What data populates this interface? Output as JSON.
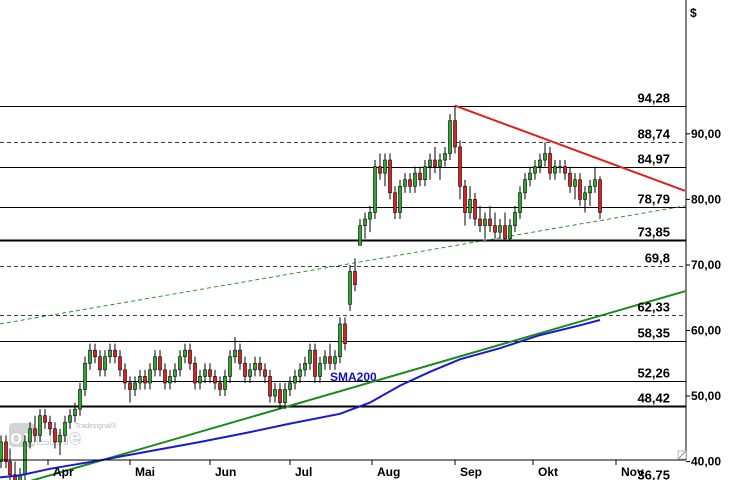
{
  "chart_data": {
    "type": "candlestick",
    "currency_symbol": "$",
    "y_range": [
      35,
      100
    ],
    "y_ticks": [
      {
        "value": 40,
        "label": "40,00"
      },
      {
        "value": 50,
        "label": "50,00"
      },
      {
        "value": 60,
        "label": "60,00"
      },
      {
        "value": 70,
        "label": "70,00"
      },
      {
        "value": 80,
        "label": "80,00"
      },
      {
        "value": 90,
        "label": "90,00"
      }
    ],
    "x_months": [
      "Apr",
      "Mai",
      "Jun",
      "Jul",
      "Aug",
      "Sep",
      "Okt",
      "Nov"
    ],
    "levels": [
      {
        "value": 94.28,
        "label": "94,28",
        "style": "solid"
      },
      {
        "value": 88.74,
        "label": "88,74",
        "style": "dashed"
      },
      {
        "value": 84.97,
        "label": "84,97",
        "style": "solid"
      },
      {
        "value": 78.79,
        "label": "78,79",
        "style": "solid"
      },
      {
        "value": 73.85,
        "label": "73,85",
        "style": "thick"
      },
      {
        "value": 69.8,
        "label": "69,8",
        "style": "dashed"
      },
      {
        "value": 62.33,
        "label": "62,33",
        "style": "dashed"
      },
      {
        "value": 58.35,
        "label": "58,35",
        "style": "solid"
      },
      {
        "value": 52.26,
        "label": "52,26",
        "style": "solid"
      },
      {
        "value": 48.42,
        "label": "48,42",
        "style": "thick"
      },
      {
        "value": 36.75,
        "label": "36,75",
        "style": "thick"
      }
    ],
    "sma_label": "SMA200",
    "sma200": [
      [
        0,
        37.6
      ],
      [
        20,
        37.9
      ],
      [
        50,
        38.9
      ],
      [
        100,
        40.2
      ],
      [
        150,
        41.6
      ],
      [
        200,
        43.0
      ],
      [
        250,
        44.5
      ],
      [
        290,
        45.8
      ],
      [
        340,
        47.3
      ],
      [
        370,
        49.0
      ],
      [
        400,
        51.6
      ],
      [
        430,
        53.7
      ],
      [
        460,
        55.6
      ],
      [
        500,
        57.3
      ],
      [
        540,
        59.3
      ],
      [
        580,
        60.8
      ],
      [
        600,
        61.6
      ]
    ],
    "trendlines": [
      {
        "name": "uptrend",
        "color": "#1a8a1a",
        "style": "solid",
        "points": [
          [
            0,
            35.7
          ],
          [
            685,
            66.0
          ]
        ]
      },
      {
        "name": "channel",
        "color": "#1a8a1a",
        "style": "dashed",
        "points": [
          [
            0,
            61.0
          ],
          [
            685,
            79.0
          ]
        ]
      },
      {
        "name": "downtrend",
        "color": "#e02020",
        "style": "solid",
        "points": [
          [
            455,
            94.3
          ],
          [
            685,
            81.3
          ]
        ]
      }
    ],
    "candles": [
      [
        1,
        40,
        44,
        39,
        43
      ],
      [
        6,
        43,
        44,
        39,
        40
      ],
      [
        10,
        40,
        42,
        37,
        38
      ],
      [
        15,
        38,
        40,
        36,
        37
      ],
      [
        20,
        37,
        39,
        36,
        38
      ],
      [
        25,
        38,
        44,
        37,
        43
      ],
      [
        30,
        43,
        46,
        42,
        45
      ],
      [
        35,
        45,
        47,
        43,
        44
      ],
      [
        40,
        44,
        48,
        43,
        47
      ],
      [
        45,
        47,
        48,
        45,
        46
      ],
      [
        50,
        46,
        47,
        44,
        45
      ],
      [
        55,
        45,
        46,
        42,
        43
      ],
      [
        60,
        43,
        45,
        41,
        44
      ],
      [
        65,
        44,
        47,
        43,
        46
      ],
      [
        70,
        46,
        48,
        45,
        47
      ],
      [
        75,
        47,
        49,
        46,
        48
      ],
      [
        80,
        48,
        52,
        47,
        51
      ],
      [
        85,
        51,
        56,
        50,
        55
      ],
      [
        90,
        55,
        58,
        54,
        57
      ],
      [
        95,
        57,
        58,
        55,
        56
      ],
      [
        100,
        56,
        57,
        53,
        54
      ],
      [
        105,
        54,
        57,
        53,
        56
      ],
      [
        110,
        56,
        58,
        55,
        57
      ],
      [
        115,
        57,
        58,
        55,
        56
      ],
      [
        120,
        56,
        57,
        53,
        54
      ],
      [
        125,
        54,
        55,
        51,
        52
      ],
      [
        130,
        52,
        53,
        49,
        51
      ],
      [
        135,
        51,
        53,
        50,
        52
      ],
      [
        140,
        52,
        54,
        51,
        53
      ],
      [
        145,
        53,
        54,
        51,
        52
      ],
      [
        150,
        52,
        55,
        51,
        54
      ],
      [
        155,
        54,
        57,
        53,
        56
      ],
      [
        160,
        56,
        57,
        53,
        54
      ],
      [
        165,
        54,
        55,
        51,
        52
      ],
      [
        170,
        52,
        54,
        51,
        53
      ],
      [
        175,
        53,
        55,
        52,
        54
      ],
      [
        180,
        54,
        57,
        53,
        56
      ],
      [
        185,
        56,
        58,
        55,
        57
      ],
      [
        190,
        57,
        58,
        54,
        55
      ],
      [
        195,
        55,
        56,
        51,
        52
      ],
      [
        200,
        52,
        54,
        51,
        53
      ],
      [
        205,
        53,
        55,
        52,
        54
      ],
      [
        210,
        54,
        55,
        52,
        53
      ],
      [
        215,
        53,
        54,
        51,
        52
      ],
      [
        220,
        52,
        53,
        50,
        51
      ],
      [
        225,
        51,
        54,
        50,
        53
      ],
      [
        230,
        53,
        57,
        52,
        56
      ],
      [
        235,
        56,
        59,
        55,
        57
      ],
      [
        240,
        57,
        58,
        54,
        55
      ],
      [
        245,
        55,
        56,
        52,
        53
      ],
      [
        250,
        53,
        55,
        52,
        54
      ],
      [
        255,
        54,
        56,
        53,
        55
      ],
      [
        260,
        55,
        56,
        53,
        54
      ],
      [
        265,
        54,
        55,
        52,
        53
      ],
      [
        270,
        53,
        54,
        49,
        50
      ],
      [
        275,
        50,
        52,
        49,
        51
      ],
      [
        280,
        51,
        52,
        48,
        49
      ],
      [
        285,
        49,
        52,
        48,
        51
      ],
      [
        290,
        51,
        53,
        50,
        52
      ],
      [
        295,
        52,
        54,
        51,
        53
      ],
      [
        300,
        53,
        55,
        52,
        54
      ],
      [
        305,
        54,
        56,
        53,
        55
      ],
      [
        310,
        55,
        58,
        54,
        57
      ],
      [
        315,
        57,
        58,
        52,
        53
      ],
      [
        320,
        53,
        56,
        52,
        55
      ],
      [
        325,
        55,
        57,
        54,
        56
      ],
      [
        330,
        56,
        58,
        54,
        55
      ],
      [
        335,
        55,
        57,
        54,
        56
      ],
      [
        340,
        56,
        62,
        55,
        61
      ],
      [
        345,
        61,
        62,
        57,
        58
      ],
      [
        350,
        64,
        70,
        63,
        69
      ],
      [
        355,
        69,
        71,
        66,
        67
      ],
      [
        360,
        73,
        77,
        73,
        76
      ],
      [
        365,
        76,
        78,
        74,
        77
      ],
      [
        370,
        77,
        79,
        75,
        78
      ],
      [
        375,
        78,
        86,
        77,
        85
      ],
      [
        380,
        85,
        87,
        83,
        84
      ],
      [
        385,
        84,
        87,
        82,
        86
      ],
      [
        390,
        86,
        87,
        80,
        81
      ],
      [
        395,
        81,
        82,
        77,
        78
      ],
      [
        400,
        78,
        83,
        77,
        82
      ],
      [
        405,
        82,
        84,
        81,
        83
      ],
      [
        410,
        83,
        84,
        81,
        82
      ],
      [
        415,
        82,
        85,
        81,
        84
      ],
      [
        420,
        84,
        85,
        82,
        83
      ],
      [
        425,
        83,
        86,
        82,
        85
      ],
      [
        430,
        85,
        87,
        83,
        86
      ],
      [
        435,
        86,
        88,
        84,
        85
      ],
      [
        440,
        85,
        87,
        83,
        86
      ],
      [
        445,
        86,
        88,
        85,
        87
      ],
      [
        450,
        87,
        93,
        86,
        92
      ],
      [
        455,
        92,
        94.3,
        87,
        88
      ],
      [
        460,
        88,
        89,
        80,
        82
      ],
      [
        465,
        82,
        83,
        76,
        78
      ],
      [
        470,
        78,
        82,
        77,
        80
      ],
      [
        475,
        80,
        81,
        76,
        77
      ],
      [
        480,
        77,
        79,
        75,
        76
      ],
      [
        485,
        76,
        78,
        74,
        77
      ],
      [
        490,
        77,
        79,
        75,
        76
      ],
      [
        495,
        76,
        78,
        74,
        75
      ],
      [
        500,
        75,
        77,
        74,
        76
      ],
      [
        505,
        76,
        78,
        73.8,
        74
      ],
      [
        510,
        74,
        77,
        73.8,
        76
      ],
      [
        515,
        76,
        79,
        75,
        78
      ],
      [
        520,
        78,
        82,
        77,
        81
      ],
      [
        525,
        81,
        84,
        80,
        83
      ],
      [
        530,
        83,
        85,
        82,
        84
      ],
      [
        535,
        84,
        86,
        83,
        85
      ],
      [
        540,
        85,
        87,
        84,
        86
      ],
      [
        545,
        86,
        88.7,
        85,
        87
      ],
      [
        550,
        87,
        88,
        83,
        84
      ],
      [
        555,
        84,
        86,
        83,
        85
      ],
      [
        560,
        85,
        86,
        84,
        85
      ],
      [
        565,
        85,
        86,
        83,
        84
      ],
      [
        570,
        84,
        85,
        81,
        82
      ],
      [
        575,
        82,
        84,
        80,
        83
      ],
      [
        580,
        83,
        84,
        79,
        80
      ],
      [
        585,
        80,
        82,
        78,
        81
      ],
      [
        590,
        81,
        83,
        79,
        82
      ],
      [
        595,
        82,
        85,
        81,
        83
      ],
      [
        600,
        83,
        83.5,
        77,
        78
      ]
    ]
  },
  "logo": {
    "main": "onLine",
    "small": "Tradesignal®"
  }
}
